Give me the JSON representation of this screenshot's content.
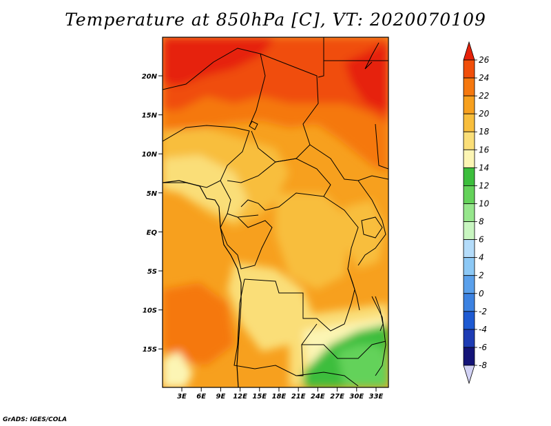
{
  "title": "Temperature at 850hPa [C], VT: 2020070109",
  "credit": "GrADS: IGES/COLA",
  "lat_labels": [
    "20N",
    "15N",
    "10N",
    "5N",
    "EQ",
    "5S",
    "10S",
    "15S"
  ],
  "lon_labels": [
    "3E",
    "6E",
    "9E",
    "12E",
    "15E",
    "18E",
    "21E",
    "24E",
    "27E",
    "30E",
    "33E"
  ],
  "colorbar": {
    "levels": [
      "26",
      "24",
      "22",
      "20",
      "18",
      "16",
      "14",
      "12",
      "10",
      "8",
      "6",
      "4",
      "2",
      "0",
      "-2",
      "-4",
      "-6",
      "-8"
    ],
    "colors": [
      "#e6220a",
      "#f04e0a",
      "#f5780f",
      "#f7a01e",
      "#f8be3c",
      "#fade78",
      "#fcf5b4",
      "#3cbe3c",
      "#64d25a",
      "#96e68c",
      "#c8f5c0",
      "#b4dcfa",
      "#8cc8f5",
      "#5aa0eb",
      "#3c82e1",
      "#1e5ad2",
      "#1e3cb4",
      "#141478",
      "#d2d2f5"
    ]
  },
  "map": {
    "region": "Central Africa",
    "lat_range": [
      -20,
      24.5
    ],
    "lon_range": [
      0,
      35
    ]
  }
}
